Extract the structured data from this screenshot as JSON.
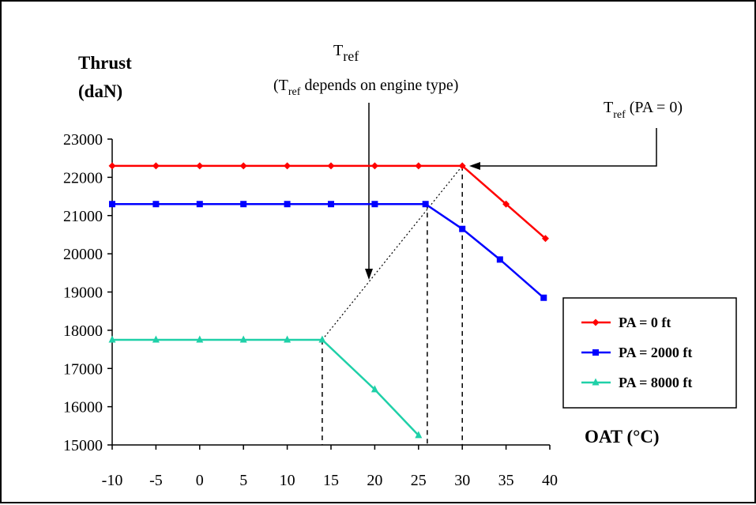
{
  "chart_data": {
    "type": "line",
    "ylabel_line1": "Thrust",
    "ylabel_line2": "(daN)",
    "xlabel": "OAT (°C)",
    "xlim": [
      -10,
      40
    ],
    "ylim": [
      15000,
      23000
    ],
    "x_ticks": [
      -10,
      -5,
      0,
      5,
      10,
      15,
      20,
      25,
      30,
      35,
      40
    ],
    "y_ticks": [
      15000,
      16000,
      17000,
      18000,
      19000,
      20000,
      21000,
      22000,
      23000
    ],
    "legend_position": "right",
    "series": [
      {
        "name": "PA = 0 ft",
        "color": "#ff0000",
        "marker": "diamond",
        "x": [
          -10,
          -5,
          0,
          5,
          10,
          15,
          20,
          25,
          30,
          35,
          39.5
        ],
        "y": [
          22300,
          22300,
          22300,
          22300,
          22300,
          22300,
          22300,
          22300,
          22300,
          21300,
          20400
        ]
      },
      {
        "name": "PA = 2000 ft",
        "color": "#0000ff",
        "marker": "square",
        "x": [
          -10,
          -5,
          0,
          5,
          10,
          15,
          20,
          25.8,
          30,
          34.3,
          39.3
        ],
        "y": [
          21300,
          21300,
          21300,
          21300,
          21300,
          21300,
          21300,
          21300,
          20650,
          19850,
          18850
        ]
      },
      {
        "name": "PA = 8000 ft",
        "color": "#1fd0a8",
        "marker": "triangle",
        "x": [
          -10,
          -5,
          0,
          5,
          10,
          14,
          20,
          25
        ],
        "y": [
          17750,
          17750,
          17750,
          17750,
          17750,
          17750,
          16450,
          15250
        ]
      }
    ],
    "reference_lines": {
      "dashed_verticals_x": [
        14,
        26,
        30
      ],
      "dotted_line": {
        "from": [
          14,
          17750
        ],
        "to": [
          30,
          22300
        ]
      }
    },
    "annotations": {
      "tref_label": "T",
      "tref_sub": "ref",
      "tref_note_open": "(T",
      "tref_note_sub": "ref",
      "tref_note_rest": " depends on engine type)",
      "tref_pa_label": "T",
      "tref_pa_sub": "ref",
      "tref_pa_rest": " (PA = 0)"
    }
  }
}
